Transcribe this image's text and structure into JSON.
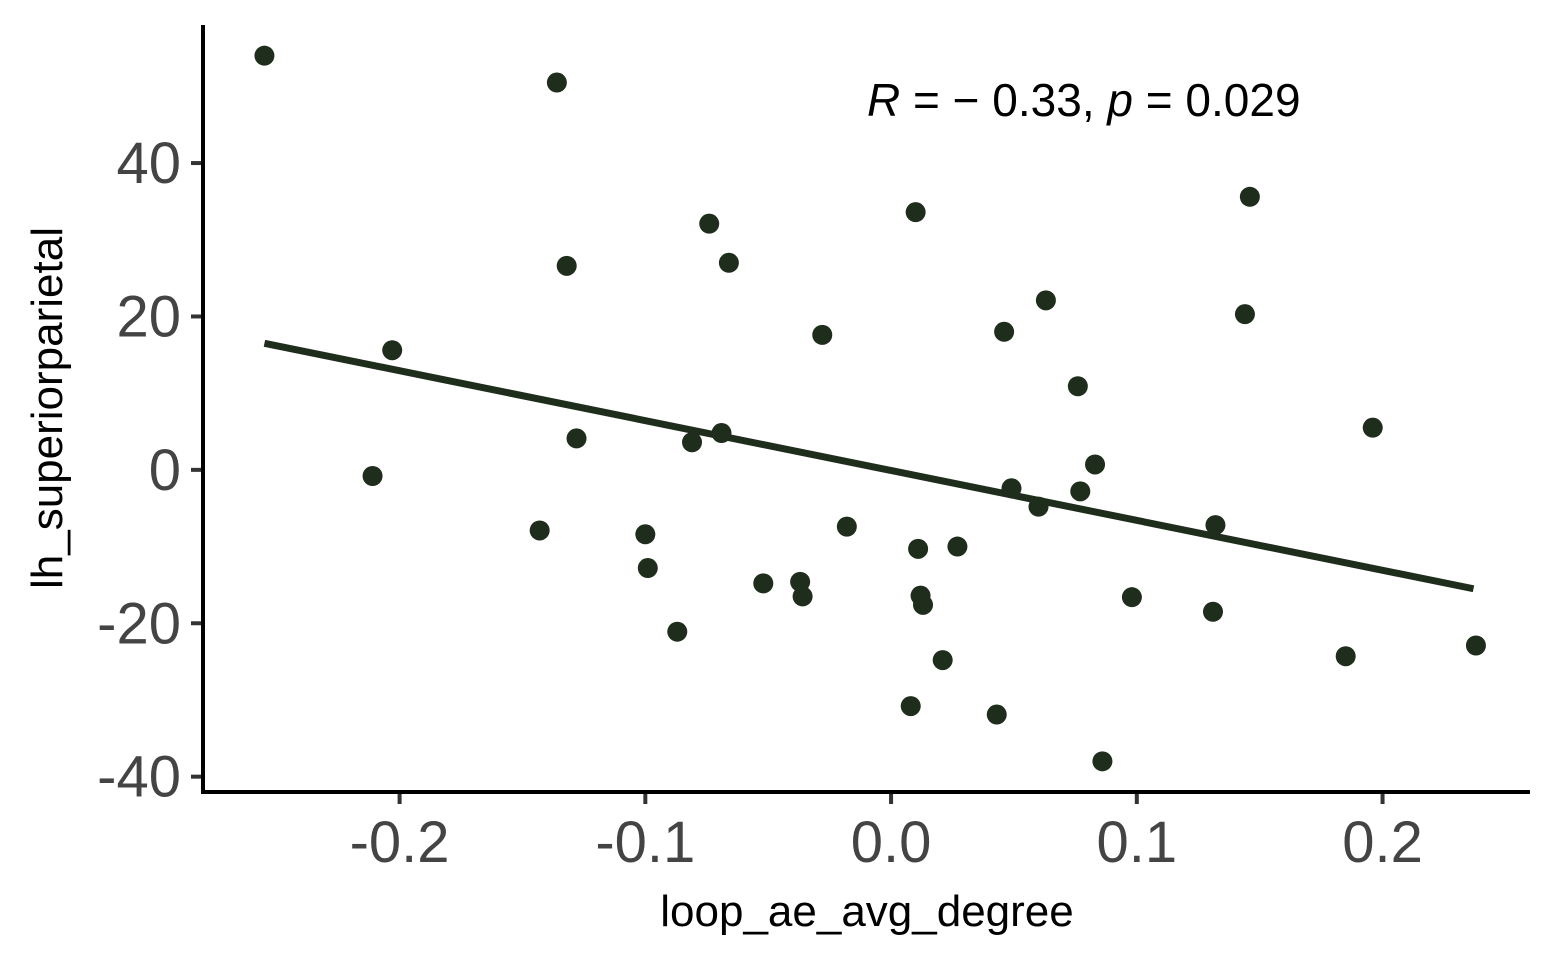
{
  "chart_data": {
    "type": "scatter",
    "xlabel": "loop_ae_avg_degree",
    "ylabel": "lh_superiorparietal",
    "xlim": [
      -0.28,
      0.26
    ],
    "ylim": [
      -42,
      58
    ],
    "x_ticks": [
      -0.2,
      -0.1,
      0.0,
      0.1,
      0.2
    ],
    "x_tick_labels": [
      "-0.2",
      "-0.1",
      "0.0",
      "0.1",
      "0.2"
    ],
    "y_ticks": [
      -40,
      -20,
      0,
      20,
      40
    ],
    "y_tick_labels": [
      "-40",
      "-20",
      "0",
      "20",
      "40"
    ],
    "grid": false,
    "annotation": {
      "r_symbol": "R",
      "r_text": " = − 0.33, ",
      "p_symbol": "p",
      "p_text": " = 0.029"
    },
    "regression_line": {
      "x": [
        -0.255,
        0.237
      ],
      "y": [
        16.5,
        -15.5
      ]
    },
    "point_color": "#1f2d1c",
    "line_color": "#1f2d1c",
    "points": [
      {
        "x": -0.255,
        "y": 54
      },
      {
        "x": -0.136,
        "y": 50.5
      },
      {
        "x": -0.211,
        "y": -0.8
      },
      {
        "x": -0.203,
        "y": 15.6
      },
      {
        "x": -0.143,
        "y": -7.9
      },
      {
        "x": -0.132,
        "y": 26.6
      },
      {
        "x": -0.128,
        "y": 4.1
      },
      {
        "x": -0.1,
        "y": -8.4
      },
      {
        "x": -0.099,
        "y": -12.8
      },
      {
        "x": -0.087,
        "y": -21.1
      },
      {
        "x": -0.081,
        "y": 3.6
      },
      {
        "x": -0.074,
        "y": 32.1
      },
      {
        "x": -0.069,
        "y": 4.8
      },
      {
        "x": -0.066,
        "y": 27.0
      },
      {
        "x": -0.052,
        "y": -14.8
      },
      {
        "x": -0.037,
        "y": -14.6
      },
      {
        "x": -0.036,
        "y": -16.5
      },
      {
        "x": -0.028,
        "y": 17.6
      },
      {
        "x": -0.018,
        "y": -7.4
      },
      {
        "x": 0.008,
        "y": -30.8
      },
      {
        "x": 0.01,
        "y": 33.6
      },
      {
        "x": 0.011,
        "y": -10.3
      },
      {
        "x": 0.012,
        "y": -16.4
      },
      {
        "x": 0.013,
        "y": -17.6
      },
      {
        "x": 0.021,
        "y": -24.8
      },
      {
        "x": 0.027,
        "y": -10.0
      },
      {
        "x": 0.043,
        "y": -31.9
      },
      {
        "x": 0.046,
        "y": 18.0
      },
      {
        "x": 0.049,
        "y": -2.4
      },
      {
        "x": 0.06,
        "y": -4.8
      },
      {
        "x": 0.063,
        "y": 22.1
      },
      {
        "x": 0.076,
        "y": 10.9
      },
      {
        "x": 0.077,
        "y": -2.8
      },
      {
        "x": 0.083,
        "y": 0.7
      },
      {
        "x": 0.086,
        "y": -38.0
      },
      {
        "x": 0.098,
        "y": -16.6
      },
      {
        "x": 0.131,
        "y": -18.5
      },
      {
        "x": 0.132,
        "y": -7.2
      },
      {
        "x": 0.144,
        "y": 20.3
      },
      {
        "x": 0.146,
        "y": 35.6
      },
      {
        "x": 0.185,
        "y": -24.3
      },
      {
        "x": 0.196,
        "y": 5.5
      },
      {
        "x": 0.238,
        "y": -22.9
      }
    ]
  }
}
